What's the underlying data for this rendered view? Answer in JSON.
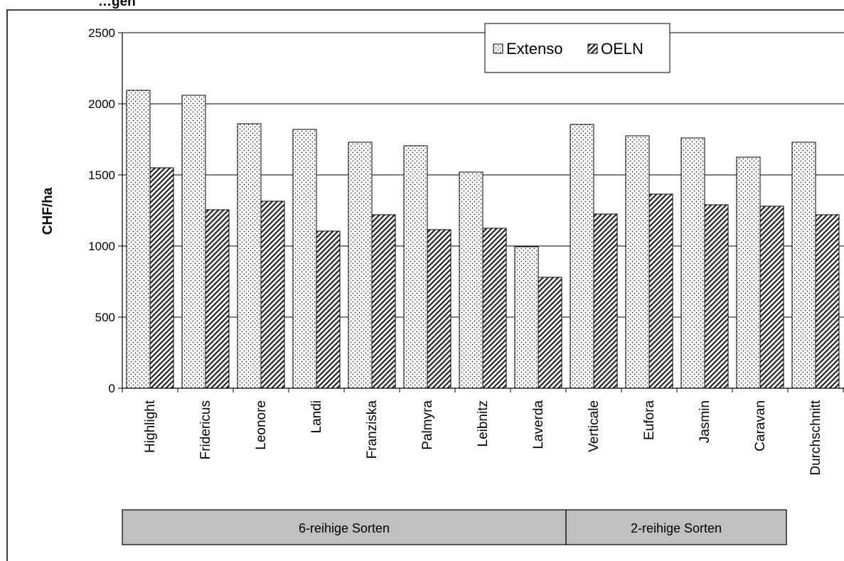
{
  "chart_data": {
    "type": "bar",
    "title": "",
    "title_fragment": "…gen",
    "xlabel": "",
    "ylabel": "CHF/ha",
    "ylim": [
      0,
      2500
    ],
    "yticks": [
      0,
      500,
      1000,
      1500,
      2000,
      2500
    ],
    "grid": true,
    "legend_position": "top-right",
    "categories": [
      "Highlight",
      "Fridericus",
      "Leonore",
      "Landi",
      "Franziska",
      "Palmyra",
      "Leibnitz",
      "Laverda",
      "Verticale",
      "Eufora",
      "Jasmin",
      "Caravan",
      "Durchschnitt"
    ],
    "series": [
      {
        "name": "Extenso",
        "pattern": "dotted",
        "values": [
          2095,
          2060,
          1860,
          1820,
          1730,
          1705,
          1520,
          995,
          1855,
          1775,
          1760,
          1625,
          1730
        ]
      },
      {
        "name": "OELN",
        "pattern": "hatched",
        "values": [
          1550,
          1255,
          1315,
          1105,
          1220,
          1115,
          1125,
          780,
          1225,
          1365,
          1290,
          1280,
          1220
        ]
      }
    ],
    "groups": [
      {
        "label": "6-reihige Sorten",
        "category_count": 8
      },
      {
        "label": "2-reihige Sorten",
        "category_count": 4
      }
    ]
  }
}
